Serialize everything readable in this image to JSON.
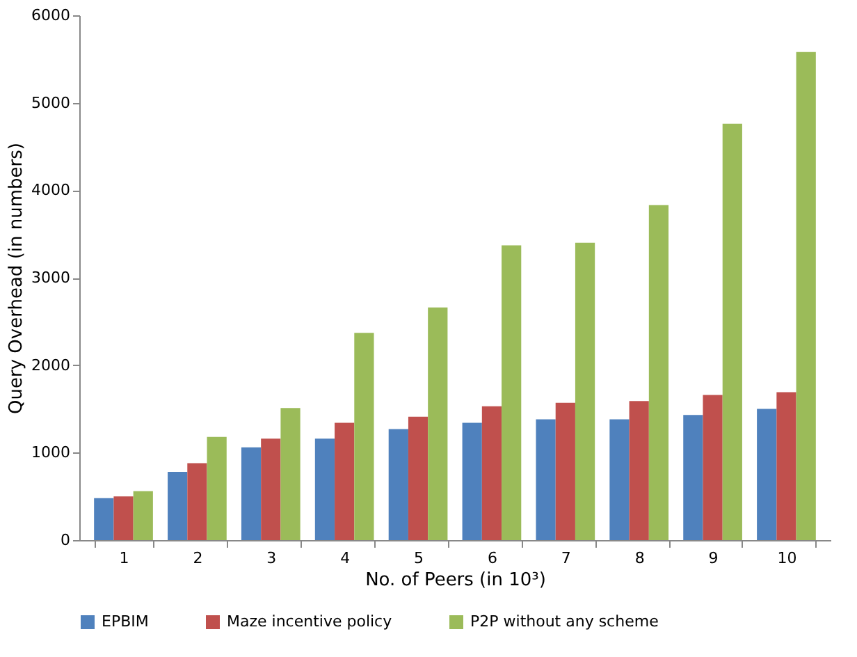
{
  "chart_data": {
    "type": "bar",
    "xlabel": "No. of Peers (in 10³)",
    "ylabel": "Query Overhead (in numbers)",
    "categories": [
      "1",
      "2",
      "3",
      "4",
      "5",
      "6",
      "7",
      "8",
      "9",
      "10"
    ],
    "series": [
      {
        "name": "EPBIM",
        "color": "#4f81bd",
        "values": [
          480,
          780,
          1060,
          1160,
          1270,
          1340,
          1380,
          1380,
          1430,
          1500
        ]
      },
      {
        "name": "Maze incentive policy",
        "color": "#c0504d",
        "values": [
          500,
          880,
          1160,
          1340,
          1410,
          1530,
          1570,
          1590,
          1660,
          1690
        ]
      },
      {
        "name": "P2P without any scheme",
        "color": "#9bbb59",
        "values": [
          560,
          1180,
          1510,
          2370,
          2660,
          3370,
          3400,
          3830,
          4760,
          5580
        ]
      }
    ],
    "ylim": [
      0,
      6000
    ],
    "yticks": [
      0,
      1000,
      2000,
      3000,
      4000,
      5000,
      6000
    ],
    "grid": false,
    "legend": "bottom"
  }
}
